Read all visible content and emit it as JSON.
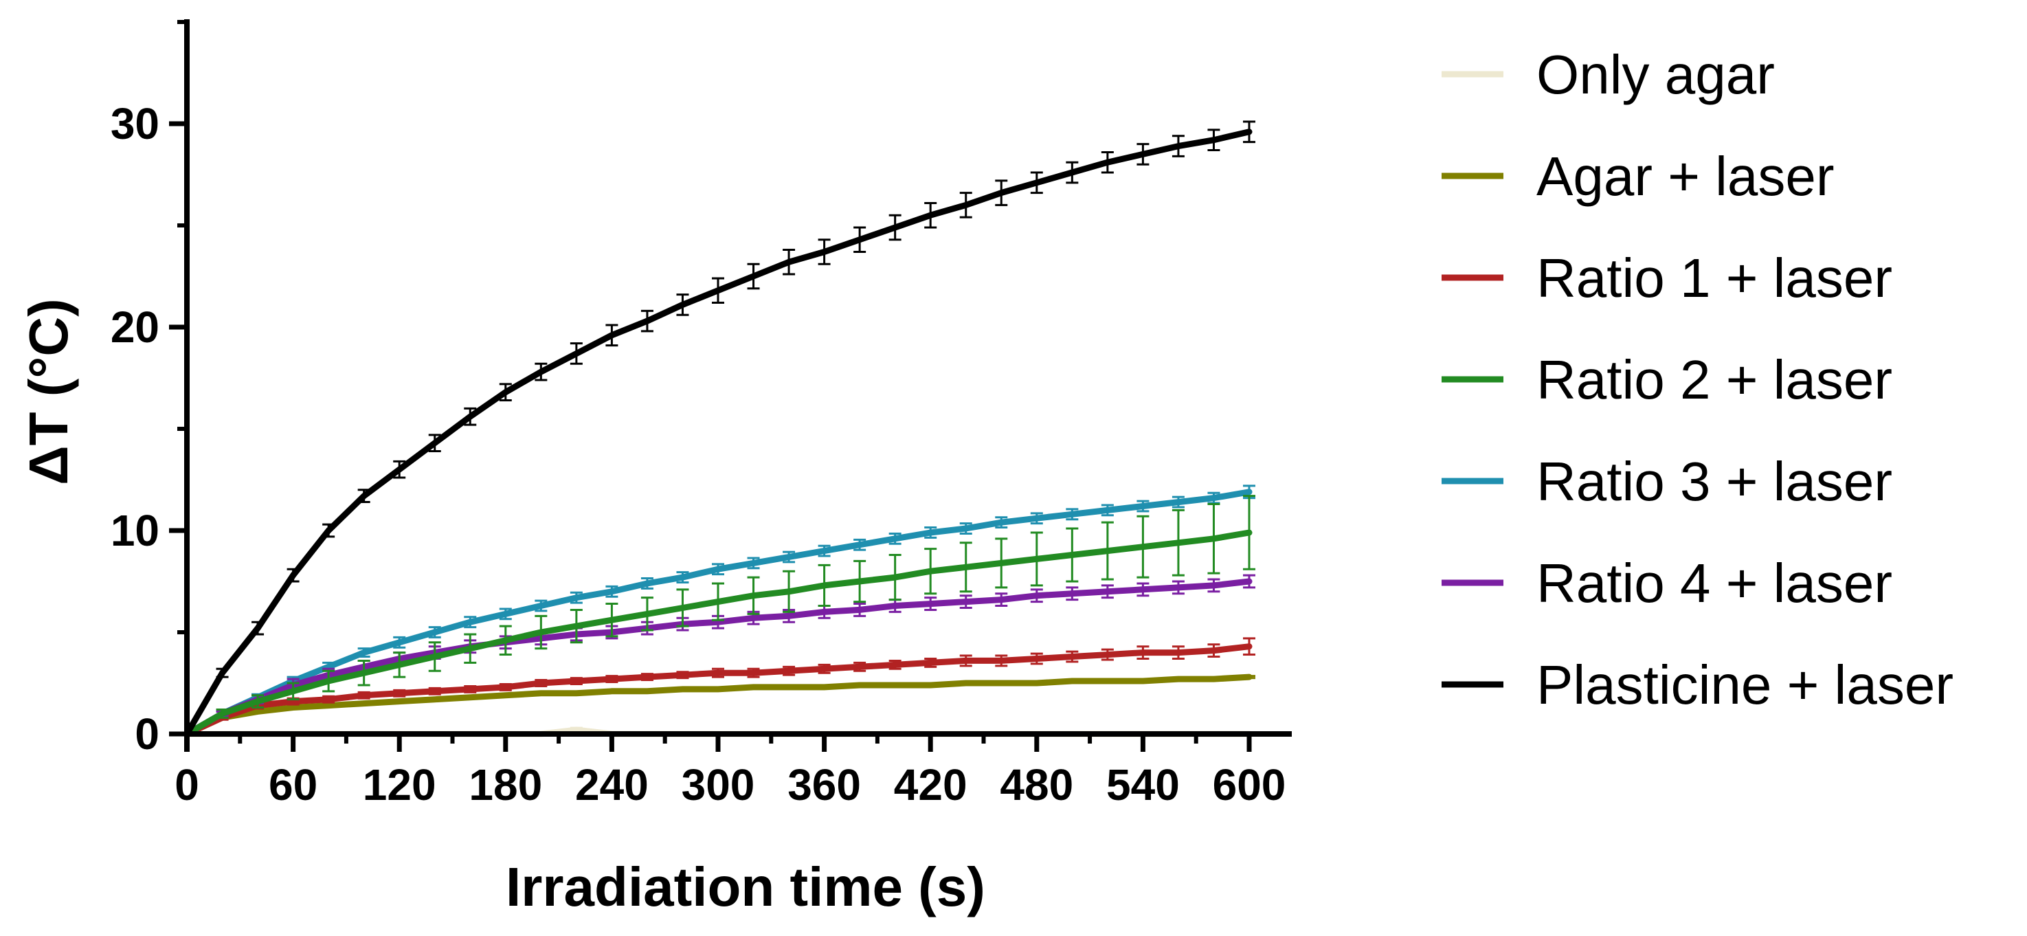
{
  "chart_data": {
    "type": "line",
    "title": "",
    "xlabel": "Irradiation time (s)",
    "ylabel": "ΔT (°C)",
    "xlim": [
      0,
      600
    ],
    "ylim": [
      0,
      35
    ],
    "xticks": [
      0,
      60,
      120,
      180,
      240,
      300,
      360,
      420,
      480,
      540,
      600
    ],
    "xtick_labels": [
      "0",
      "60",
      "120",
      "180",
      "240",
      "300",
      "360",
      "420",
      "480",
      "540",
      "600"
    ],
    "yticks": [
      0,
      10,
      20,
      30
    ],
    "ytick_labels": [
      "0",
      "10",
      "20",
      "30"
    ],
    "grid": false,
    "legend_position": "right",
    "x": [
      0,
      20,
      40,
      60,
      80,
      100,
      120,
      140,
      160,
      180,
      200,
      220,
      240,
      260,
      280,
      300,
      320,
      340,
      360,
      380,
      400,
      420,
      440,
      460,
      480,
      500,
      520,
      540,
      560,
      580,
      600
    ],
    "series": [
      {
        "name": "Only agar",
        "color": "#EDE8D0",
        "values": [
          0,
          0,
          0,
          0,
          0,
          0,
          0,
          0,
          0,
          0,
          0,
          0.2,
          0,
          0,
          0,
          0,
          0,
          0,
          0,
          0,
          0,
          0,
          0,
          0,
          0,
          0,
          0,
          0,
          0,
          0,
          0
        ],
        "errors": [
          0,
          0,
          0,
          0,
          0,
          0,
          0,
          0,
          0,
          0,
          0,
          0.1,
          0,
          0,
          0,
          0,
          0,
          0,
          0,
          0,
          0,
          0,
          0,
          0,
          0,
          0,
          0,
          0,
          0,
          0,
          0
        ]
      },
      {
        "name": "Agar + laser",
        "color": "#808000",
        "values": [
          0,
          0.8,
          1.1,
          1.3,
          1.4,
          1.5,
          1.6,
          1.7,
          1.8,
          1.9,
          2.0,
          2.0,
          2.1,
          2.1,
          2.2,
          2.2,
          2.3,
          2.3,
          2.3,
          2.4,
          2.4,
          2.4,
          2.5,
          2.5,
          2.5,
          2.6,
          2.6,
          2.6,
          2.7,
          2.7,
          2.8
        ],
        "errors": [
          0,
          0.05,
          0.05,
          0.05,
          0.05,
          0.05,
          0.05,
          0.05,
          0.05,
          0.05,
          0.05,
          0.05,
          0.05,
          0.05,
          0.05,
          0.05,
          0.05,
          0.05,
          0.05,
          0.05,
          0.05,
          0.05,
          0.05,
          0.05,
          0.05,
          0.05,
          0.05,
          0.05,
          0.05,
          0.05,
          0.05
        ]
      },
      {
        "name": "Ratio 1 + laser",
        "color": "#B22222",
        "values": [
          0,
          0.8,
          1.4,
          1.6,
          1.7,
          1.9,
          2.0,
          2.1,
          2.2,
          2.3,
          2.5,
          2.6,
          2.7,
          2.8,
          2.9,
          3.0,
          3.0,
          3.1,
          3.2,
          3.3,
          3.4,
          3.5,
          3.6,
          3.6,
          3.7,
          3.8,
          3.9,
          4.0,
          4.0,
          4.1,
          4.3
        ],
        "errors": [
          0,
          0.1,
          0.15,
          0.15,
          0.15,
          0.15,
          0.15,
          0.15,
          0.15,
          0.15,
          0.15,
          0.15,
          0.15,
          0.15,
          0.15,
          0.2,
          0.2,
          0.2,
          0.2,
          0.2,
          0.2,
          0.2,
          0.25,
          0.25,
          0.25,
          0.25,
          0.25,
          0.3,
          0.3,
          0.3,
          0.4
        ]
      },
      {
        "name": "Ratio 2 + laser",
        "color": "#228B22",
        "values": [
          0,
          1.0,
          1.6,
          2.1,
          2.6,
          3.0,
          3.4,
          3.8,
          4.2,
          4.6,
          5.0,
          5.3,
          5.6,
          5.9,
          6.2,
          6.5,
          6.8,
          7.0,
          7.3,
          7.5,
          7.7,
          8.0,
          8.2,
          8.4,
          8.6,
          8.8,
          9.0,
          9.2,
          9.4,
          9.6,
          9.9
        ],
        "errors": [
          0,
          0.2,
          0.3,
          0.4,
          0.5,
          0.6,
          0.6,
          0.7,
          0.7,
          0.7,
          0.8,
          0.8,
          0.8,
          0.8,
          0.9,
          0.9,
          0.9,
          1.0,
          1.0,
          1.0,
          1.1,
          1.1,
          1.2,
          1.2,
          1.3,
          1.3,
          1.4,
          1.5,
          1.6,
          1.7,
          1.8
        ]
      },
      {
        "name": "Ratio 3 + laser",
        "color": "#1F8FAF",
        "values": [
          0,
          1.0,
          1.8,
          2.6,
          3.3,
          4.0,
          4.5,
          5.0,
          5.5,
          5.9,
          6.3,
          6.7,
          7.0,
          7.4,
          7.7,
          8.1,
          8.4,
          8.7,
          9.0,
          9.3,
          9.6,
          9.9,
          10.1,
          10.4,
          10.6,
          10.8,
          11.0,
          11.2,
          11.4,
          11.6,
          11.9
        ],
        "errors": [
          0,
          0.1,
          0.15,
          0.2,
          0.2,
          0.2,
          0.25,
          0.25,
          0.25,
          0.25,
          0.25,
          0.25,
          0.25,
          0.25,
          0.25,
          0.25,
          0.25,
          0.25,
          0.25,
          0.25,
          0.25,
          0.25,
          0.25,
          0.25,
          0.25,
          0.25,
          0.25,
          0.25,
          0.25,
          0.25,
          0.3
        ]
      },
      {
        "name": "Ratio 4 + laser",
        "color": "#7A1FA2",
        "values": [
          0,
          1.0,
          1.7,
          2.4,
          2.9,
          3.3,
          3.7,
          4.0,
          4.3,
          4.5,
          4.7,
          4.9,
          5.0,
          5.2,
          5.4,
          5.5,
          5.7,
          5.8,
          6.0,
          6.1,
          6.3,
          6.4,
          6.5,
          6.6,
          6.8,
          6.9,
          7.0,
          7.1,
          7.2,
          7.3,
          7.5
        ],
        "errors": [
          0,
          0.1,
          0.2,
          0.3,
          0.3,
          0.3,
          0.3,
          0.3,
          0.3,
          0.3,
          0.3,
          0.3,
          0.3,
          0.3,
          0.3,
          0.3,
          0.3,
          0.3,
          0.3,
          0.3,
          0.3,
          0.3,
          0.3,
          0.3,
          0.3,
          0.3,
          0.3,
          0.3,
          0.3,
          0.3,
          0.3
        ]
      },
      {
        "name": "Plasticine + laser",
        "color": "#000000",
        "values": [
          0,
          3.0,
          5.2,
          7.8,
          10.0,
          11.7,
          13.0,
          14.3,
          15.6,
          16.8,
          17.8,
          18.7,
          19.6,
          20.3,
          21.1,
          21.8,
          22.5,
          23.2,
          23.7,
          24.3,
          24.9,
          25.5,
          26.0,
          26.6,
          27.1,
          27.6,
          28.1,
          28.5,
          28.9,
          29.2,
          29.6
        ],
        "errors": [
          0,
          0.2,
          0.3,
          0.3,
          0.3,
          0.3,
          0.4,
          0.4,
          0.4,
          0.4,
          0.4,
          0.5,
          0.5,
          0.5,
          0.5,
          0.6,
          0.6,
          0.6,
          0.6,
          0.6,
          0.6,
          0.6,
          0.6,
          0.6,
          0.5,
          0.5,
          0.5,
          0.5,
          0.5,
          0.5,
          0.5
        ]
      }
    ]
  }
}
